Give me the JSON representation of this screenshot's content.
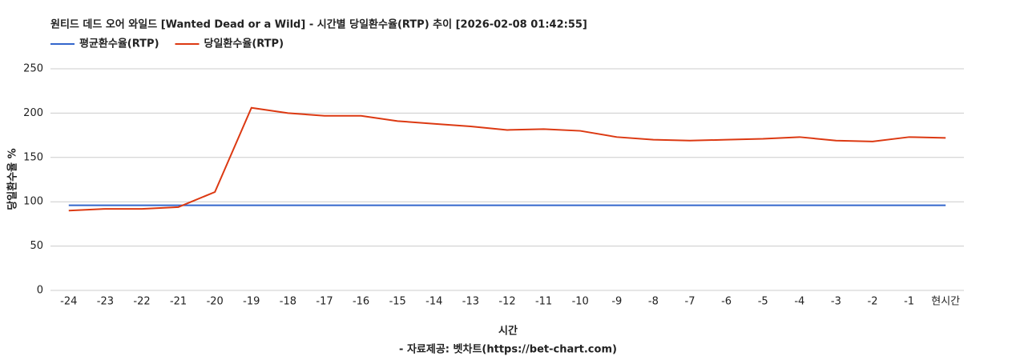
{
  "chart_data": {
    "type": "line",
    "title": "원티드 데드 오어 와일드 [Wanted Dead or a Wild] - 시간별 당일환수율(RTP) 추이 [2026-02-08 01:42:55]",
    "x_label": "시간",
    "y_label": "당일환수율 %",
    "source": "- 자료제공: 벳차트(https://bet-chart.com)",
    "categories": [
      "-24",
      "-23",
      "-22",
      "-21",
      "-20",
      "-19",
      "-18",
      "-17",
      "-16",
      "-15",
      "-14",
      "-13",
      "-12",
      "-11",
      "-10",
      "-9",
      "-8",
      "-7",
      "-6",
      "-5",
      "-4",
      "-3",
      "-2",
      "-1",
      "현시간"
    ],
    "series": [
      {
        "name": "평균환수율(RTP)",
        "color": "#3366cc",
        "values": [
          96,
          96,
          96,
          96,
          96,
          96,
          96,
          96,
          96,
          96,
          96,
          96,
          96,
          96,
          96,
          96,
          96,
          96,
          96,
          96,
          96,
          96,
          96,
          96,
          96
        ]
      },
      {
        "name": "당일환수율(RTP)",
        "color": "#dc3912",
        "values": [
          90,
          92,
          92,
          94,
          111,
          206,
          200,
          197,
          197,
          191,
          188,
          185,
          181,
          182,
          180,
          173,
          170,
          169,
          170,
          171,
          173,
          169,
          168,
          173,
          172
        ]
      }
    ],
    "ylim": [
      0,
      250
    ],
    "yticks": [
      0,
      50,
      100,
      150,
      200,
      250
    ],
    "grid": true
  }
}
